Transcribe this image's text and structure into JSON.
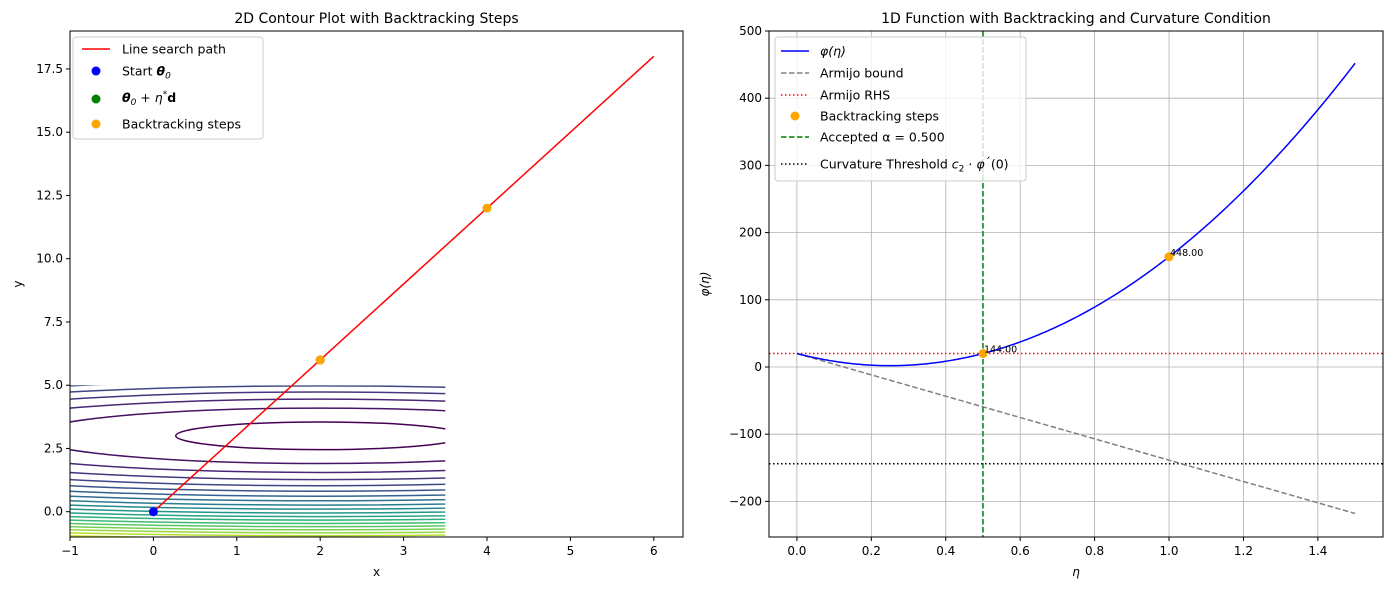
{
  "chart_data": [
    {
      "type": "contour",
      "title": "2D Contour Plot with Backtracking Steps",
      "xlabel": "x",
      "ylabel": "y",
      "xlim": [
        -1,
        6.35
      ],
      "ylim": [
        -1,
        19
      ],
      "xticks": [
        "−1",
        "0",
        "1",
        "2",
        "3",
        "4",
        "5",
        "6"
      ],
      "xtick_values": [
        -1,
        0,
        1,
        2,
        3,
        4,
        5,
        6
      ],
      "yticks": [
        "0.0",
        "2.5",
        "5.0",
        "7.5",
        "10.0",
        "12.5",
        "15.0",
        "17.5"
      ],
      "ytick_values": [
        0,
        2.5,
        5,
        7.5,
        10,
        12.5,
        15,
        17.5
      ],
      "grid": false,
      "legend_position": "upper-left",
      "contour": {
        "center": [
          2,
          3
        ],
        "x_range": [
          -1,
          3.5
        ],
        "y_range": [
          -1,
          5
        ],
        "x_weight": 1,
        "y_weight": 10,
        "levels": [
          3,
          12,
          21,
          30,
          39,
          48,
          57,
          66,
          75,
          84,
          93,
          102,
          111,
          120,
          129,
          138,
          147,
          156,
          165,
          174
        ],
        "colormap": "viridis"
      },
      "line_search_path": {
        "name": "Line search path",
        "x": [
          0,
          6
        ],
        "y": [
          0,
          18
        ],
        "color": "#ff0000"
      },
      "start_point": {
        "name": "Start",
        "name_math": "θ0",
        "x": 0,
        "y": 0,
        "color": "#0000ff"
      },
      "accepted_point": {
        "name_math": "θ0 + η*d",
        "x": 2,
        "y": 6,
        "color": "#008000"
      },
      "backtracking_steps": {
        "name": "Backtracking steps",
        "x": [
          4,
          2
        ],
        "y": [
          12,
          6
        ],
        "color": "#ffa500"
      }
    },
    {
      "type": "line",
      "title": "1D Function with Backtracking and Curvature Condition",
      "xlabel": "η",
      "ylabel": "φ(η)",
      "xlim": [
        -0.075,
        1.575
      ],
      "ylim": [
        -253,
        500
      ],
      "xticks": [
        "0.0",
        "0.2",
        "0.4",
        "0.6",
        "0.8",
        "1.0",
        "1.2",
        "1.4"
      ],
      "xtick_values": [
        0,
        0.2,
        0.4,
        0.6,
        0.8,
        1.0,
        1.2,
        1.4
      ],
      "yticks": [
        "−200",
        "−100",
        "0",
        "100",
        "200",
        "300",
        "400",
        "500"
      ],
      "ytick_values": [
        -200,
        -100,
        0,
        100,
        200,
        300,
        400,
        500
      ],
      "grid": true,
      "legend_position": "upper-left",
      "phi": {
        "name": "φ(η)",
        "coefficients": [
          20,
          -144,
          288
        ],
        "x_range": [
          0,
          1.5
        ],
        "color": "#0000ff"
      },
      "armijo_bound": {
        "name": "Armijo bound",
        "x": [
          0,
          1.5
        ],
        "y": [
          20,
          -218
        ],
        "color": "#808080"
      },
      "armijo_rhs": {
        "name": "Armijo RHS",
        "y": 20,
        "color": "#ff0000"
      },
      "backtracking_steps": {
        "name": "Backtracking steps",
        "x": [
          1.0,
          0.5
        ],
        "y": [
          164,
          20
        ],
        "labels": [
          "448.00",
          "144.00"
        ],
        "color": "#ffa500"
      },
      "accepted": {
        "name": "Accepted α = 0.500",
        "x": 0.5,
        "color": "#008000"
      },
      "curvature_threshold": {
        "name": "Curvature Threshold",
        "name_math": "c2 · φ´(0)",
        "y": -144,
        "color": "#000000"
      }
    }
  ]
}
